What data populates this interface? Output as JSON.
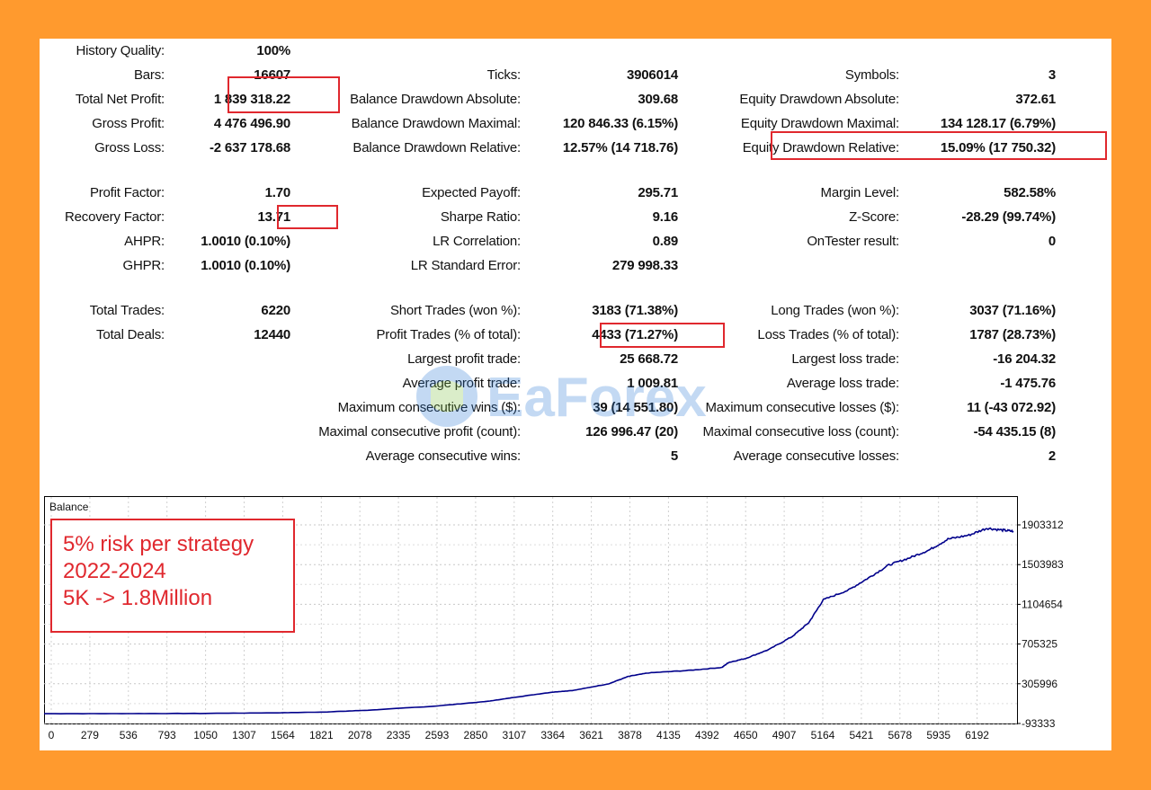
{
  "stats": {
    "history_quality": {
      "label": "History Quality:",
      "value": "100%"
    },
    "bars": {
      "label": "Bars:",
      "value": "16607"
    },
    "total_net_profit": {
      "label": "Total Net Profit:",
      "value": "1 839 318.22"
    },
    "gross_profit": {
      "label": "Gross Profit:",
      "value": "4 476 496.90"
    },
    "gross_loss": {
      "label": "Gross Loss:",
      "value": "-2 637 178.68"
    },
    "ticks": {
      "label": "Ticks:",
      "value": "3906014"
    },
    "balance_dd_abs": {
      "label": "Balance Drawdown Absolute:",
      "value": "309.68"
    },
    "balance_dd_max": {
      "label": "Balance Drawdown Maximal:",
      "value": "120 846.33 (6.15%)"
    },
    "balance_dd_rel": {
      "label": "Balance Drawdown Relative:",
      "value": "12.57% (14 718.76)"
    },
    "symbols": {
      "label": "Symbols:",
      "value": "3"
    },
    "equity_dd_abs": {
      "label": "Equity Drawdown Absolute:",
      "value": "372.61"
    },
    "equity_dd_max": {
      "label": "Equity Drawdown Maximal:",
      "value": "134 128.17 (6.79%)"
    },
    "equity_dd_rel": {
      "label": "Equity Drawdown Relative:",
      "value": "15.09% (17 750.32)"
    },
    "profit_factor": {
      "label": "Profit Factor:",
      "value": "1.70"
    },
    "recovery_factor": {
      "label": "Recovery Factor:",
      "value": "13.71"
    },
    "ahpr": {
      "label": "AHPR:",
      "value": "1.0010 (0.10%)"
    },
    "ghpr": {
      "label": "GHPR:",
      "value": "1.0010 (0.10%)"
    },
    "expected_payoff": {
      "label": "Expected Payoff:",
      "value": "295.71"
    },
    "sharpe_ratio": {
      "label": "Sharpe Ratio:",
      "value": "9.16"
    },
    "lr_correlation": {
      "label": "LR Correlation:",
      "value": "0.89"
    },
    "lr_std_error": {
      "label": "LR Standard Error:",
      "value": "279 998.33"
    },
    "margin_level": {
      "label": "Margin Level:",
      "value": "582.58%"
    },
    "z_score": {
      "label": "Z-Score:",
      "value": "-28.29 (99.74%)"
    },
    "ontester": {
      "label": "OnTester result:",
      "value": "0"
    },
    "total_trades": {
      "label": "Total Trades:",
      "value": "6220"
    },
    "total_deals": {
      "label": "Total Deals:",
      "value": "12440"
    },
    "short_trades": {
      "label": "Short Trades (won %):",
      "value": "3183 (71.38%)"
    },
    "profit_trades": {
      "label": "Profit Trades (% of total):",
      "value": "4433 (71.27%)"
    },
    "largest_profit": {
      "label": "Largest profit trade:",
      "value": "25 668.72"
    },
    "average_profit": {
      "label": "Average profit trade:",
      "value": "1 009.81"
    },
    "max_consec_wins": {
      "label": "Maximum consecutive wins ($):",
      "value": "39 (14 551.80)"
    },
    "maximal_consec_profit": {
      "label": "Maximal consecutive profit (count):",
      "value": "126 996.47 (20)"
    },
    "avg_consec_wins": {
      "label": "Average consecutive wins:",
      "value": "5"
    },
    "long_trades": {
      "label": "Long Trades (won %):",
      "value": "3037 (71.16%)"
    },
    "loss_trades": {
      "label": "Loss Trades (% of total):",
      "value": "1787 (28.73%)"
    },
    "largest_loss": {
      "label": "Largest loss trade:",
      "value": "-16 204.32"
    },
    "average_loss": {
      "label": "Average loss trade:",
      "value": "-1 475.76"
    },
    "max_consec_losses": {
      "label": "Maximum consecutive losses ($):",
      "value": "11 (-43 072.92)"
    },
    "maximal_consec_loss": {
      "label": "Maximal consecutive loss (count):",
      "value": "-54 435.15 (8)"
    },
    "avg_consec_losses": {
      "label": "Average consecutive losses:",
      "value": "2"
    }
  },
  "watermark": {
    "text": "EaForex"
  },
  "annotation": {
    "line1": "5% risk per strategy",
    "line2": "2022-2024",
    "line3": "5K -> 1.8Million"
  },
  "colors": {
    "frame": "#FF9A2E",
    "highlight": "#E0282E",
    "balance_line": "#00008B"
  },
  "chart_data": {
    "type": "line",
    "title": "Balance",
    "x_ticks": [
      "0",
      "279",
      "536",
      "793",
      "1050",
      "1307",
      "1564",
      "1821",
      "2078",
      "2335",
      "2593",
      "2850",
      "3107",
      "3364",
      "3621",
      "3878",
      "4135",
      "4392",
      "4650",
      "4907",
      "5164",
      "5421",
      "5678",
      "5935",
      "6192"
    ],
    "y_ticks": [
      "1903312",
      "1503983",
      "1104654",
      "705325",
      "305996",
      "-93333"
    ],
    "ylim": [
      -93333,
      1903312
    ],
    "xlim": [
      0,
      6220
    ],
    "series": [
      {
        "x": [
          0,
          500,
          1000,
          1500,
          1800,
          2078,
          2500,
          2850,
          3000,
          3250,
          3400,
          3621,
          3750,
          3878,
          4135,
          4350,
          4392,
          4500,
          4650,
          4800,
          4907,
          5000,
          5164,
          5300,
          5421,
          5550,
          5678,
          5800,
          5935,
          6050,
          6150,
          6220
        ],
        "values": [
          5000,
          6000,
          8000,
          14000,
          22000,
          40000,
          80000,
          130000,
          165000,
          220000,
          240000,
          305000,
          380000,
          415000,
          440000,
          470000,
          520000,
          560000,
          650000,
          780000,
          920000,
          1150000,
          1250000,
          1380000,
          1500000,
          1570000,
          1650000,
          1760000,
          1800000,
          1870000,
          1850000,
          1839318
        ]
      }
    ]
  }
}
